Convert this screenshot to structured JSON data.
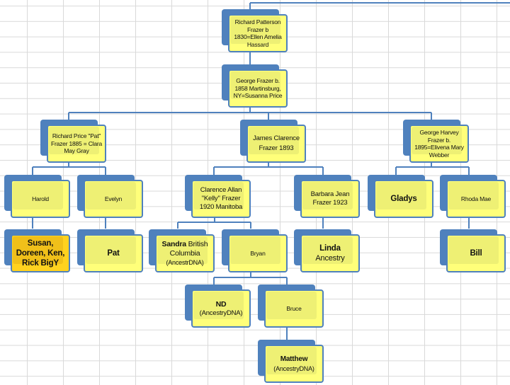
{
  "colors": {
    "box_fill": "#ffff7a",
    "box_border": "#4f81bd",
    "highlight_fill": "#ffd21f",
    "connector": "#4f81bd"
  },
  "nodes": {
    "richard_patterson": [
      "Richard Patterson",
      "Frazer b",
      "1830=Ellen Amelia",
      "Hassard"
    ],
    "george": [
      "George Frazer b.",
      "1858 Martinsburg,",
      "NY=Susanna Price"
    ],
    "richard_price": [
      "Richard Price \"Pat\"",
      "Frazer 1885 = Clara",
      "May Gray"
    ],
    "james": [
      "James Clarence",
      "Frazer 1893"
    ],
    "george_harvey": [
      "George Harvey",
      "Frazer b.",
      "1895=Elivena Mary",
      "Webber"
    ],
    "harold": [
      "Harold"
    ],
    "evelyn": [
      "Evelyn"
    ],
    "clarence": [
      "Clarence Allan",
      "\"Kelly\" Frazer",
      "1920 Manitoba"
    ],
    "barbara": [
      "Barbara Jean",
      "Frazer 1923"
    ],
    "gladys": [
      "Gladys"
    ],
    "rhoda": [
      "Rhoda Mae"
    ],
    "susan": [
      "Susan,",
      "Doreen, Ken,",
      "Rick BigY"
    ],
    "pat": [
      "Pat"
    ],
    "sandra": {
      "bold": "Sandra",
      "rest": " British",
      "line2": "Columbia",
      "line3": "(AncestrDNA)"
    },
    "bryan": [
      "Bryan"
    ],
    "linda": {
      "bold": "Linda",
      "line2": "Ancestry"
    },
    "bill": [
      "Bill"
    ],
    "nd": {
      "bold": "ND",
      "line2": "(AncestryDNA)"
    },
    "bruce": [
      "Bruce"
    ],
    "matthew": {
      "bold": "Matthew",
      "line2": "(AncestryDNA)"
    }
  }
}
